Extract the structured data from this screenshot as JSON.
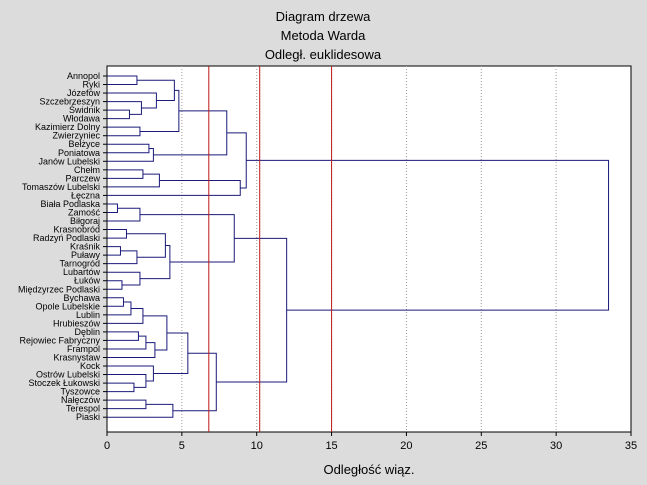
{
  "chart_data": {
    "type": "dendrogram",
    "title": [
      "Diagram drzewa",
      "Metoda Warda",
      "Odległ. euklidesowa"
    ],
    "xlabel": "Odległość wiąz.",
    "xlim": [
      0,
      35
    ],
    "xticks": [
      0,
      5,
      10,
      15,
      20,
      25,
      30,
      35
    ],
    "grid": "vertical dotted",
    "cut_lines": [
      6.8,
      10.2,
      15.0
    ],
    "colors": {
      "tree": "#1a1a7a",
      "cut": "#c01818",
      "plot_bg": "#ffffff",
      "frame": "#000000"
    },
    "leaves": [
      "Annopol",
      "Ryki",
      "Józefów",
      "Szczebrzeszyn",
      "Świdnik",
      "Włodawa",
      "Kazimierz Dolny",
      "Zwierzyniec",
      "Bełżyce",
      "Poniatowa",
      "Janów Lubelski",
      "Chełm",
      "Parczew",
      "Tomaszów Lubelski",
      "Łęczna",
      "Biała Podlaska",
      "Zamość",
      "Biłgoraj",
      "Krasnobród",
      "Radzyń Podlaski",
      "Kraśnik",
      "Puławy",
      "Tarnogród",
      "Lubartów",
      "Łuków",
      "Międzyrzec Podlaski",
      "Bychawa",
      "Opole Lubelskie",
      "Lublin",
      "Hrubieszów",
      "Dęblin",
      "Rejowiec Fabryczny",
      "Frampol",
      "Krasnystaw",
      "Kock",
      "Ostrów Lubelski",
      "Stoczek Łukowski",
      "Tyszowce",
      "Nałęczów",
      "Terespol",
      "Piaski"
    ],
    "merges": [
      {
        "a": 0,
        "b": 1,
        "h": 2.0
      },
      {
        "a": 4,
        "b": 5,
        "h": 1.5
      },
      {
        "a": 3,
        "b": 42,
        "h": 2.3
      },
      {
        "a": 2,
        "b": 43,
        "h": 3.3
      },
      {
        "a": 41,
        "b": 44,
        "h": 4.5
      },
      {
        "a": 6,
        "b": 7,
        "h": 2.2
      },
      {
        "a": 45,
        "b": 46,
        "h": 4.8
      },
      {
        "a": 8,
        "b": 9,
        "h": 2.8
      },
      {
        "a": 48,
        "b": 10,
        "h": 3.1
      },
      {
        "a": 47,
        "b": 49,
        "h": 8.0
      },
      {
        "a": 11,
        "b": 12,
        "h": 2.4
      },
      {
        "a": 51,
        "b": 13,
        "h": 3.5
      },
      {
        "a": 52,
        "b": 14,
        "h": 8.9
      },
      {
        "a": 50,
        "b": 53,
        "h": 9.3
      },
      {
        "a": 15,
        "b": 16,
        "h": 0.7
      },
      {
        "a": 55,
        "b": 17,
        "h": 2.2
      },
      {
        "a": 18,
        "b": 19,
        "h": 1.3
      },
      {
        "a": 20,
        "b": 21,
        "h": 0.9
      },
      {
        "a": 58,
        "b": 22,
        "h": 2.0
      },
      {
        "a": 57,
        "b": 59,
        "h": 3.9
      },
      {
        "a": 24,
        "b": 25,
        "h": 1.0
      },
      {
        "a": 23,
        "b": 61,
        "h": 2.2
      },
      {
        "a": 60,
        "b": 62,
        "h": 4.2
      },
      {
        "a": 56,
        "b": 63,
        "h": 8.5
      },
      {
        "a": 26,
        "b": 27,
        "h": 1.1
      },
      {
        "a": 65,
        "b": 28,
        "h": 1.6
      },
      {
        "a": 66,
        "b": 29,
        "h": 2.4
      },
      {
        "a": 30,
        "b": 31,
        "h": 2.1
      },
      {
        "a": 68,
        "b": 32,
        "h": 2.6
      },
      {
        "a": 69,
        "b": 33,
        "h": 3.2
      },
      {
        "a": 67,
        "b": 70,
        "h": 4.0
      },
      {
        "a": 36,
        "b": 37,
        "h": 1.8
      },
      {
        "a": 35,
        "b": 72,
        "h": 2.6
      },
      {
        "a": 34,
        "b": 73,
        "h": 3.1
      },
      {
        "a": 71,
        "b": 74,
        "h": 5.4
      },
      {
        "a": 38,
        "b": 39,
        "h": 2.6
      },
      {
        "a": 76,
        "b": 40,
        "h": 4.4
      },
      {
        "a": 75,
        "b": 77,
        "h": 7.3
      },
      {
        "a": 64,
        "b": 78,
        "h": 12.0
      },
      {
        "a": 54,
        "b": 79,
        "h": 33.5
      }
    ]
  }
}
